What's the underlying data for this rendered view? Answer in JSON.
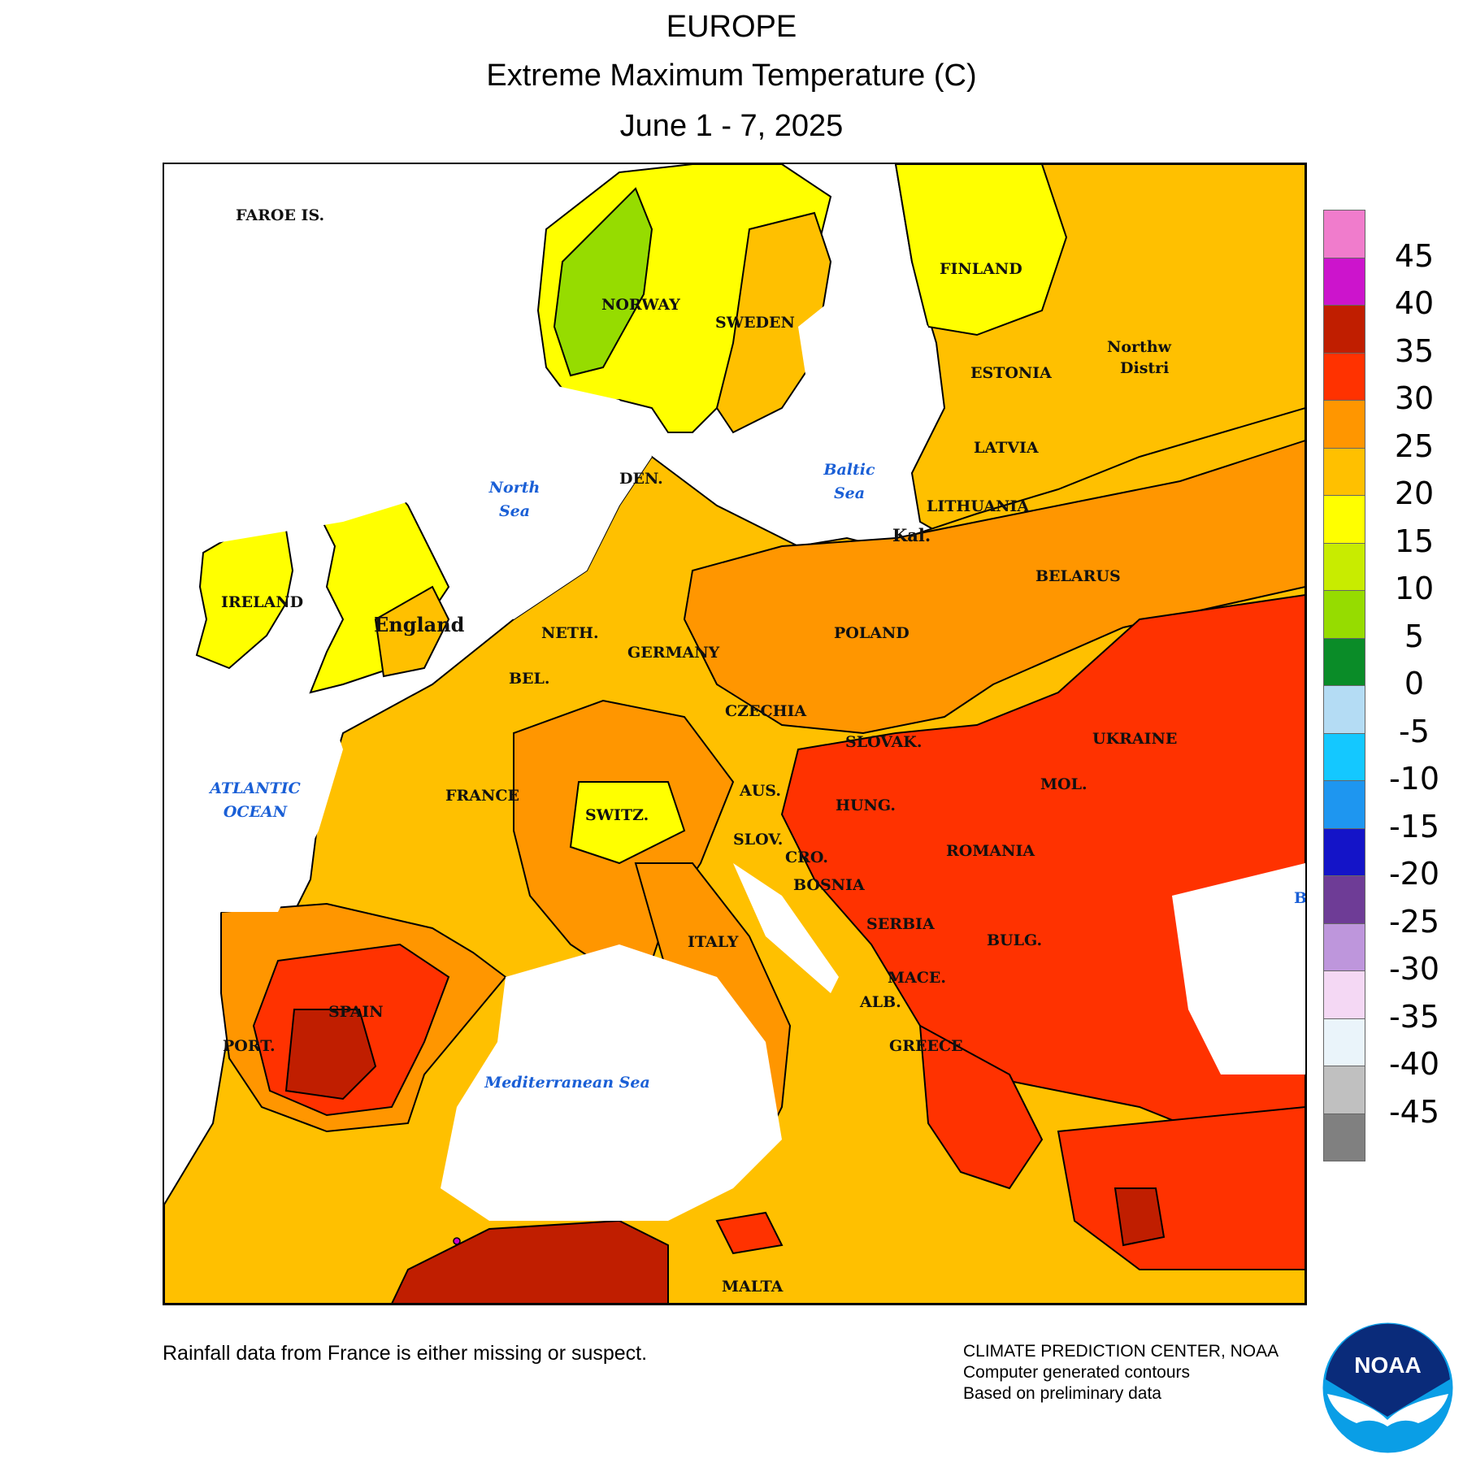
{
  "header": {
    "region": "EUROPE",
    "variable": "Extreme Maximum Temperature (C)",
    "period": "June 1 - 7, 2025"
  },
  "map": {
    "country_labels": [
      "FAROE IS.",
      "NORWAY",
      "SWEDEN",
      "FINLAND",
      "ESTONIA",
      "Northw",
      "Distri",
      "LATVIA",
      "LITHUANIA",
      "Kal.",
      "DEN.",
      "BELARUS",
      "IRELAND",
      "England",
      "NETH.",
      "GERMANY",
      "POLAND",
      "BEL.",
      "CZECHIA",
      "SLOVAK.",
      "UKRAINE",
      "FRANCE",
      "AUS.",
      "HUNG.",
      "MOL.",
      "SWITZ.",
      "SLOV.",
      "CRO.",
      "ROMANIA",
      "BOSNIA",
      "SERBIA",
      "BULG.",
      "ITALY",
      "MACE.",
      "ALB.",
      "SPAIN",
      "GREECE",
      "PORT.",
      "MALTA",
      "B"
    ],
    "sea_labels": [
      "North Sea",
      "Baltic Sea",
      "ATLANTIC OCEAN",
      "Mediterranean Sea"
    ],
    "temperature_classes": [
      {
        "range": "< 15",
        "color": "#ffff00"
      },
      {
        "range": "10-15",
        "color": "#c8ec00"
      },
      {
        "range": "15-20",
        "color": "#ffff00"
      },
      {
        "range": "20-25",
        "color": "#ffc000"
      },
      {
        "range": "25-30",
        "color": "#ff9600"
      },
      {
        "range": "30-35",
        "color": "#ff3200"
      },
      {
        "range": "35-40",
        "color": "#c01e00"
      },
      {
        "range": "40-45",
        "color": "#cc00cc"
      }
    ]
  },
  "legend": {
    "colors": [
      "#f07ccc",
      "#cc14cc",
      "#c01e00",
      "#ff3200",
      "#ff9600",
      "#ffc000",
      "#ffff00",
      "#c8ec00",
      "#96dc00",
      "#0a8c28",
      "#b4dcf4",
      "#14c8ff",
      "#1e96f0",
      "#1414c8",
      "#6e3c96",
      "#be96dc",
      "#f4d8f4",
      "#eaf4fa",
      "#c0c0c0",
      "#808080"
    ],
    "ticks": [
      "45",
      "40",
      "35",
      "30",
      "25",
      "20",
      "15",
      "10",
      "5",
      "0",
      "-5",
      "-10",
      "-15",
      "-20",
      "-25",
      "-30",
      "-35",
      "-40",
      "-45"
    ]
  },
  "footer": {
    "note": "Rainfall data from France is either missing or suspect.",
    "credit_1": "CLIMATE PREDICTION CENTER, NOAA",
    "credit_2": "Computer generated contours",
    "credit_3": "Based on preliminary data",
    "logo_text": "NOAA"
  }
}
